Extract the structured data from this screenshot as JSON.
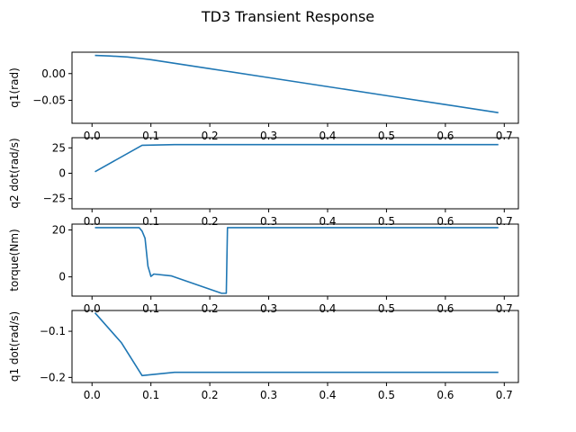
{
  "title": "TD3 Transient Response",
  "chart_data": [
    {
      "type": "line",
      "ylabel": "q1(rad)",
      "xlim": [
        -0.034,
        0.724
      ],
      "ylim": [
        -0.093,
        0.04
      ],
      "xticks": [
        0.0,
        0.1,
        0.2,
        0.3,
        0.4,
        0.5,
        0.6,
        0.7
      ],
      "xtick_labels": [
        "0.0",
        "0.1",
        "0.2",
        "0.3",
        "0.4",
        "0.5",
        "0.6",
        "0.7"
      ],
      "yticks": [
        0.0,
        -0.05
      ],
      "ytick_labels": [
        "0.00",
        "−0.05"
      ],
      "x": [
        0.005,
        0.03,
        0.06,
        0.085,
        0.1,
        0.2,
        0.3,
        0.4,
        0.5,
        0.6,
        0.69
      ],
      "y": [
        0.034,
        0.033,
        0.031,
        0.028,
        0.026,
        0.0092,
        -0.0076,
        -0.0244,
        -0.0412,
        -0.058,
        -0.0731
      ]
    },
    {
      "type": "line",
      "ylabel": "q2 dot(rad/s)",
      "xlim": [
        -0.034,
        0.724
      ],
      "ylim": [
        -35,
        35
      ],
      "xticks": [
        0.0,
        0.1,
        0.2,
        0.3,
        0.4,
        0.5,
        0.6,
        0.7
      ],
      "xtick_labels": [
        "0.0",
        "0.1",
        "0.2",
        "0.3",
        "0.4",
        "0.5",
        "0.6",
        "0.7"
      ],
      "yticks": [
        25,
        0,
        -25
      ],
      "ytick_labels": [
        "25",
        "0",
        "−25"
      ],
      "x": [
        0.005,
        0.085,
        0.14,
        0.69
      ],
      "y": [
        1.5,
        27.5,
        28.2,
        28.2
      ]
    },
    {
      "type": "line",
      "ylabel": "torque(Nm)",
      "xlim": [
        -0.034,
        0.724
      ],
      "ylim": [
        -8.2,
        22.5
      ],
      "xticks": [
        0.0,
        0.1,
        0.2,
        0.3,
        0.4,
        0.5,
        0.6,
        0.7
      ],
      "xtick_labels": [
        "0.0",
        "0.1",
        "0.2",
        "0.3",
        "0.4",
        "0.5",
        "0.6",
        "0.7"
      ],
      "yticks": [
        20,
        0
      ],
      "ytick_labels": [
        "20",
        "0"
      ],
      "x": [
        0.005,
        0.08,
        0.085,
        0.09,
        0.095,
        0.098,
        0.1,
        0.105,
        0.135,
        0.22,
        0.228,
        0.23,
        0.69
      ],
      "y": [
        21,
        21,
        19.5,
        16.5,
        4.5,
        2,
        0.2,
        1.2,
        0.4,
        -7,
        -7,
        21,
        21
      ]
    },
    {
      "type": "line",
      "ylabel": "q1 dot(rad/s)",
      "xlim": [
        -0.034,
        0.724
      ],
      "ylim": [
        -0.211,
        -0.055
      ],
      "xticks": [
        0.0,
        0.1,
        0.2,
        0.3,
        0.4,
        0.5,
        0.6,
        0.7
      ],
      "xtick_labels": [
        "0.0",
        "0.1",
        "0.2",
        "0.3",
        "0.4",
        "0.5",
        "0.6",
        "0.7"
      ],
      "yticks": [
        -0.1,
        -0.2
      ],
      "ytick_labels": [
        "−0.1",
        "−0.2"
      ],
      "x": [
        0.005,
        0.05,
        0.085,
        0.1,
        0.14,
        0.69
      ],
      "y": [
        -0.06,
        -0.125,
        -0.196,
        -0.194,
        -0.189,
        -0.189
      ]
    }
  ]
}
